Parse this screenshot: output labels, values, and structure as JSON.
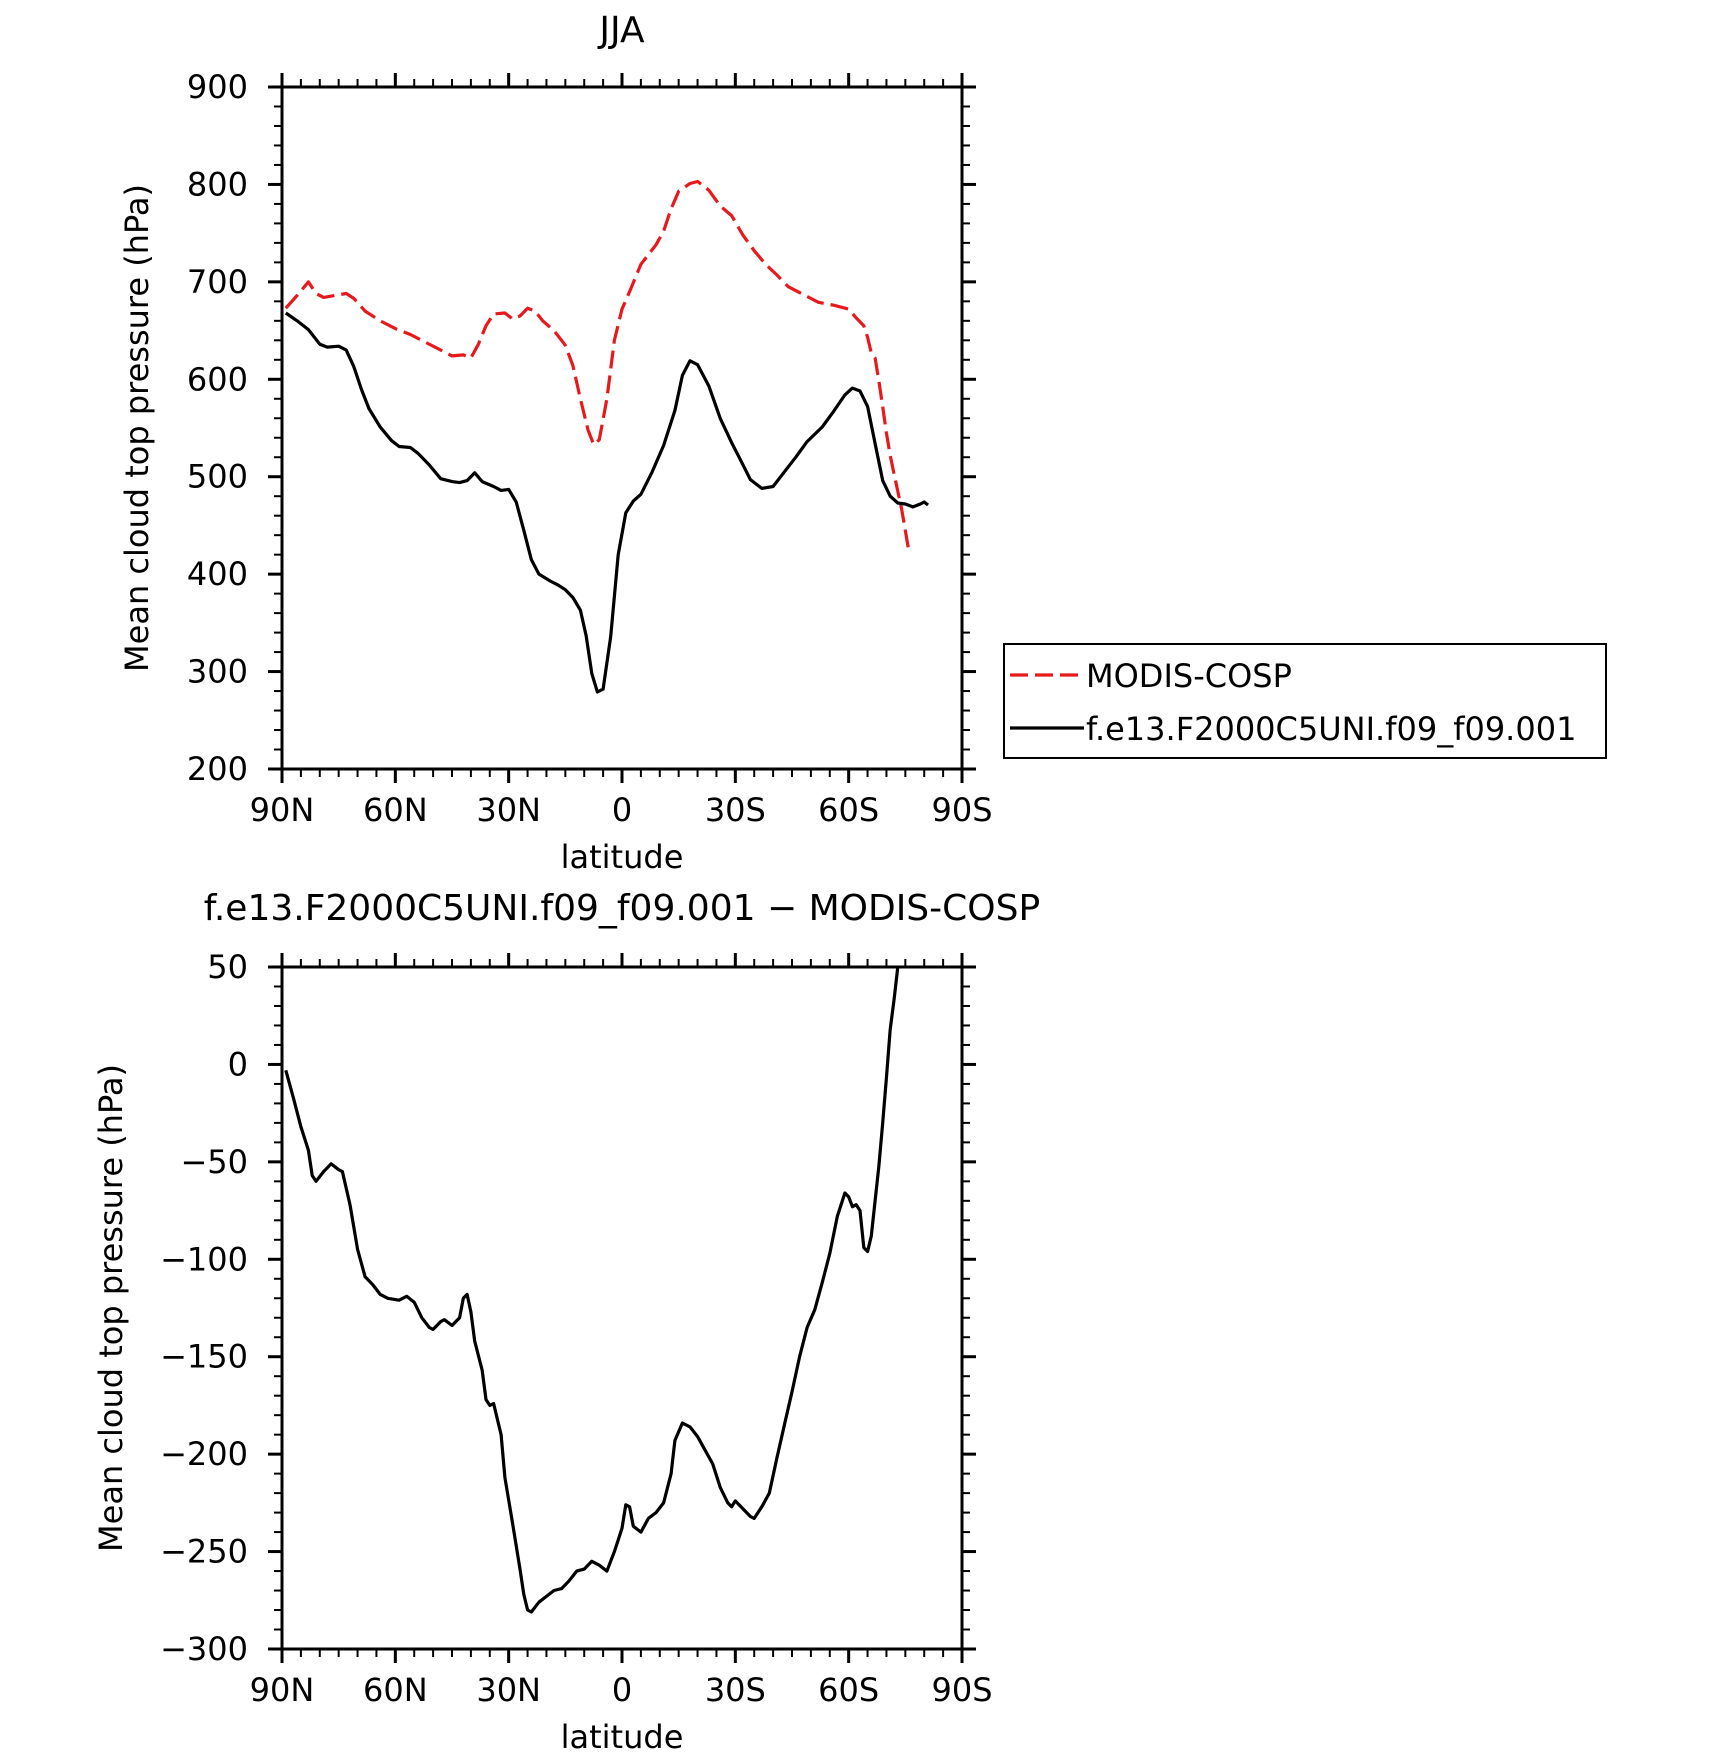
{
  "chart_data": [
    {
      "type": "line",
      "title": "JJA",
      "xlabel": "latitude",
      "ylabel": "Mean cloud top pressure (hPa)",
      "xlim": [
        90,
        -90
      ],
      "ylim": [
        200,
        900
      ],
      "x_ticks": [
        90,
        60,
        30,
        0,
        -30,
        -60,
        -90
      ],
      "x_tick_labels": [
        "90N",
        "60N",
        "30N",
        "0",
        "30S",
        "60S",
        "90S"
      ],
      "y_ticks": [
        200,
        300,
        400,
        500,
        600,
        700,
        800,
        900
      ],
      "y_tick_labels": [
        "200",
        "300",
        "400",
        "500",
        "600",
        "700",
        "800",
        "900"
      ],
      "legend_position": "right",
      "series": [
        {
          "name": "MODIS-COSP",
          "color": "#e8191c",
          "dash": "dashed",
          "points": [
            [
              89,
              673
            ],
            [
              86,
              686
            ],
            [
              83,
              700
            ],
            [
              81,
              688
            ],
            [
              79,
              684
            ],
            [
              76,
              686
            ],
            [
              73,
              688
            ],
            [
              71,
              683
            ],
            [
              68,
              670
            ],
            [
              64,
              660
            ],
            [
              60,
              652
            ],
            [
              56,
              646
            ],
            [
              52,
              638
            ],
            [
              48,
              630
            ],
            [
              45,
              624
            ],
            [
              42,
              625
            ],
            [
              40,
              622
            ],
            [
              38,
              636
            ],
            [
              36,
              655
            ],
            [
              34,
              667
            ],
            [
              31,
              668
            ],
            [
              29,
              662
            ],
            [
              27,
              665
            ],
            [
              25,
              673
            ],
            [
              23,
              670
            ],
            [
              21,
              660
            ],
            [
              18,
              650
            ],
            [
              15,
              635
            ],
            [
              13,
              614
            ],
            [
              11,
              580
            ],
            [
              9,
              548
            ],
            [
              7.5,
              533
            ],
            [
              6,
              538
            ],
            [
              4,
              580
            ],
            [
              2,
              640
            ],
            [
              0,
              672
            ],
            [
              -2,
              690
            ],
            [
              -5,
              718
            ],
            [
              -9,
              738
            ],
            [
              -11,
              752
            ],
            [
              -13,
              775
            ],
            [
              -15,
              793
            ],
            [
              -18,
              801
            ],
            [
              -20,
              803
            ],
            [
              -23,
              794
            ],
            [
              -26,
              778
            ],
            [
              -29,
              768
            ],
            [
              -32,
              748
            ],
            [
              -35,
              732
            ],
            [
              -38,
              718
            ],
            [
              -41,
              707
            ],
            [
              -44,
              695
            ],
            [
              -48,
              687
            ],
            [
              -52,
              679
            ],
            [
              -56,
              676
            ],
            [
              -60,
              672
            ],
            [
              -62,
              663
            ],
            [
              -64,
              655
            ],
            [
              -65,
              643
            ],
            [
              -66,
              627
            ],
            [
              -67,
              622
            ],
            [
              -68,
              598
            ],
            [
              -69,
              572
            ],
            [
              -70,
              545
            ],
            [
              -71,
              522
            ],
            [
              -72,
              503
            ],
            [
              -73,
              485
            ],
            [
              -74,
              467
            ],
            [
              -75,
              445
            ],
            [
              -76,
              422
            ]
          ]
        },
        {
          "name": "f.e13.F2000C5UNI.f09_f09.001",
          "color": "#000000",
          "dash": "solid",
          "points": [
            [
              89,
              668
            ],
            [
              86,
              660
            ],
            [
              83,
              651
            ],
            [
              80,
              636
            ],
            [
              78,
              633
            ],
            [
              75,
              634
            ],
            [
              73,
              630
            ],
            [
              71,
              613
            ],
            [
              69,
              590
            ],
            [
              67,
              570
            ],
            [
              64,
              551
            ],
            [
              61,
              537
            ],
            [
              59,
              531
            ],
            [
              56,
              530
            ],
            [
              54,
              524
            ],
            [
              51,
              512
            ],
            [
              48,
              498
            ],
            [
              45,
              495
            ],
            [
              43,
              494
            ],
            [
              41,
              496
            ],
            [
              39,
              504
            ],
            [
              37,
              495
            ],
            [
              34,
              490
            ],
            [
              32,
              486
            ],
            [
              30,
              487
            ],
            [
              28,
              474
            ],
            [
              26,
              445
            ],
            [
              24,
              415
            ],
            [
              22,
              400
            ],
            [
              19,
              393
            ],
            [
              17,
              389
            ],
            [
              15,
              384
            ],
            [
              13,
              376
            ],
            [
              11,
              363
            ],
            [
              9.5,
              337
            ],
            [
              8,
              298
            ],
            [
              6.5,
              279
            ],
            [
              5,
              282
            ],
            [
              3,
              336
            ],
            [
              1,
              420
            ],
            [
              -1,
              463
            ],
            [
              -3,
              475
            ],
            [
              -5,
              482
            ],
            [
              -8,
              505
            ],
            [
              -11,
              532
            ],
            [
              -14,
              568
            ],
            [
              -16,
              604
            ],
            [
              -18,
              619
            ],
            [
              -20,
              615
            ],
            [
              -23,
              593
            ],
            [
              -26,
              560
            ],
            [
              -29,
              535
            ],
            [
              -31,
              520
            ],
            [
              -34,
              497
            ],
            [
              -37,
              488
            ],
            [
              -40,
              490
            ],
            [
              -43,
              505
            ],
            [
              -46,
              520
            ],
            [
              -49,
              536
            ],
            [
              -53,
              551
            ],
            [
              -56,
              567
            ],
            [
              -59,
              584
            ],
            [
              -61,
              591
            ],
            [
              -63,
              588
            ],
            [
              -65,
              572
            ],
            [
              -67,
              534
            ],
            [
              -69,
              496
            ],
            [
              -71,
              480
            ],
            [
              -73,
              473
            ],
            [
              -75,
              472
            ],
            [
              -77,
              469
            ],
            [
              -79,
              472
            ],
            [
              -80,
              474
            ],
            [
              -81,
              471
            ]
          ]
        }
      ]
    },
    {
      "type": "line",
      "title": "f.e13.F2000C5UNI.f09_f09.001 − MODIS-COSP",
      "xlabel": "latitude",
      "ylabel": "Mean cloud top pressure (hPa)",
      "xlim": [
        90,
        -90
      ],
      "ylim": [
        -300,
        50
      ],
      "x_ticks": [
        90,
        60,
        30,
        0,
        -30,
        -60,
        -90
      ],
      "x_tick_labels": [
        "90N",
        "60N",
        "30N",
        "0",
        "30S",
        "60S",
        "90S"
      ],
      "y_ticks": [
        -300,
        -250,
        -200,
        -150,
        -100,
        -50,
        0,
        50
      ],
      "y_tick_labels": [
        "−300",
        "−250",
        "−200",
        "−150",
        "−100",
        "−50",
        "0",
        "50"
      ],
      "series": [
        {
          "color": "#000000",
          "dash": "solid",
          "points": [
            [
              89,
              -3
            ],
            [
              87,
              -17
            ],
            [
              85,
              -32
            ],
            [
              83,
              -44
            ],
            [
              82,
              -57
            ],
            [
              81,
              -60
            ],
            [
              79,
              -55
            ],
            [
              77,
              -51
            ],
            [
              75,
              -54
            ],
            [
              74,
              -55
            ],
            [
              72,
              -72
            ],
            [
              70,
              -95
            ],
            [
              68,
              -109
            ],
            [
              66,
              -113
            ],
            [
              64,
              -118
            ],
            [
              62,
              -120
            ],
            [
              59,
              -121
            ],
            [
              57,
              -119
            ],
            [
              55,
              -122
            ],
            [
              53,
              -130
            ],
            [
              51,
              -135
            ],
            [
              50,
              -136
            ],
            [
              48,
              -132
            ],
            [
              47,
              -131
            ],
            [
              45,
              -134
            ],
            [
              43,
              -130
            ],
            [
              42,
              -120
            ],
            [
              41,
              -118
            ],
            [
              40,
              -127
            ],
            [
              39,
              -142
            ],
            [
              37,
              -157
            ],
            [
              36,
              -172
            ],
            [
              35,
              -175
            ],
            [
              34,
              -174
            ],
            [
              32,
              -190
            ],
            [
              31,
              -212
            ],
            [
              29,
              -235
            ],
            [
              27,
              -259
            ],
            [
              26,
              -272
            ],
            [
              25,
              -280
            ],
            [
              24,
              -281
            ],
            [
              22,
              -276
            ],
            [
              20,
              -273
            ],
            [
              18,
              -270
            ],
            [
              16,
              -269
            ],
            [
              14,
              -265
            ],
            [
              12,
              -260
            ],
            [
              10,
              -259
            ],
            [
              8,
              -255
            ],
            [
              6,
              -257
            ],
            [
              4,
              -260
            ],
            [
              2,
              -250
            ],
            [
              0,
              -238
            ],
            [
              -1,
              -226
            ],
            [
              -2,
              -227
            ],
            [
              -3,
              -237
            ],
            [
              -5,
              -240
            ],
            [
              -7,
              -233
            ],
            [
              -9,
              -230
            ],
            [
              -11,
              -225
            ],
            [
              -13,
              -210
            ],
            [
              -14,
              -193
            ],
            [
              -16,
              -184
            ],
            [
              -18,
              -186
            ],
            [
              -20,
              -191
            ],
            [
              -22,
              -198
            ],
            [
              -24,
              -205
            ],
            [
              -26,
              -217
            ],
            [
              -28,
              -225
            ],
            [
              -29,
              -227
            ],
            [
              -30,
              -224
            ],
            [
              -32,
              -228
            ],
            [
              -34,
              -232
            ],
            [
              -35,
              -233
            ],
            [
              -37,
              -227
            ],
            [
              -39,
              -220
            ],
            [
              -41,
              -202
            ],
            [
              -43,
              -185
            ],
            [
              -45,
              -168
            ],
            [
              -47,
              -150
            ],
            [
              -49,
              -135
            ],
            [
              -51,
              -126
            ],
            [
              -53,
              -112
            ],
            [
              -55,
              -97
            ],
            [
              -57,
              -78
            ],
            [
              -59,
              -66
            ],
            [
              -60,
              -68
            ],
            [
              -61,
              -73
            ],
            [
              -62,
              -72
            ],
            [
              -63,
              -75
            ],
            [
              -64,
              -94
            ],
            [
              -65,
              -96
            ],
            [
              -66,
              -88
            ],
            [
              -67,
              -70
            ],
            [
              -68,
              -52
            ],
            [
              -69,
              -30
            ],
            [
              -70,
              -7
            ],
            [
              -71,
              18
            ],
            [
              -72,
              33
            ],
            [
              -73,
              50
            ]
          ]
        }
      ]
    }
  ]
}
